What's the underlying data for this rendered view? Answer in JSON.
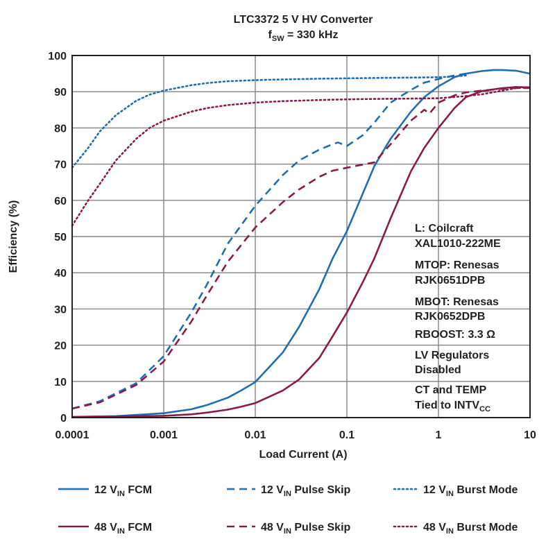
{
  "chart_data": {
    "type": "line",
    "title": "LTC3372 5 V HV Converter",
    "subtitle": {
      "main": "f",
      "sub": "SW",
      "rest": " = 330 kHz"
    },
    "xlabel": "Load Current (A)",
    "ylabel": "Efficiency (%)",
    "x_scale": "log",
    "xlim": [
      0.0001,
      10
    ],
    "ylim": [
      0,
      100
    ],
    "grid": true,
    "x_ticks": [
      "0.0001",
      "0.001",
      "0.01",
      "0.1",
      "1",
      "10"
    ],
    "y_ticks": [
      "0",
      "10",
      "20",
      "30",
      "40",
      "50",
      "60",
      "70",
      "80",
      "90",
      "100"
    ],
    "colors": {
      "12V": "#1f6db3",
      "48V": "#8b1a4a"
    },
    "annotations": [
      [
        {
          "t": "L: Coilcraft"
        }
      ],
      [
        {
          "t": "XAL1010-222ME"
        }
      ],
      [
        {
          "t": "MTOP: Renesas"
        }
      ],
      [
        {
          "t": "RJK0651DPB"
        }
      ],
      [
        {
          "t": "MBOT: Renesas"
        }
      ],
      [
        {
          "t": "RJK0652DPB"
        }
      ],
      [
        {
          "t": "RBOOST: 3.3 Ω"
        }
      ],
      [
        {
          "t": "LV Regulators"
        }
      ],
      [
        {
          "t": "Disabled"
        }
      ],
      [
        {
          "t": "CT and TEMP"
        }
      ],
      [
        {
          "t": "Tied to INTV"
        },
        {
          "t": "CC",
          "sub": true
        }
      ]
    ],
    "legend_placement": "bottom",
    "series": [
      {
        "name": "12 V IN FCM",
        "legend": [
          {
            "t": "12 V"
          },
          {
            "t": "IN",
            "sub": true
          },
          {
            "t": " FCM"
          }
        ],
        "color": "#1f6db3",
        "style": "solid",
        "x": [
          0.0001,
          0.0003,
          0.001,
          0.002,
          0.003,
          0.005,
          0.007,
          0.01,
          0.02,
          0.03,
          0.05,
          0.07,
          0.1,
          0.15,
          0.2,
          0.3,
          0.5,
          0.7,
          1,
          1.5,
          2,
          3,
          4,
          5,
          7,
          10
        ],
        "y": [
          0.2,
          0.4,
          1.2,
          2.3,
          3.5,
          5.5,
          7.5,
          9.8,
          18,
          25,
          35.5,
          44,
          51.5,
          62,
          69.5,
          77,
          84.5,
          88.5,
          91.5,
          94,
          95,
          95.7,
          96,
          96,
          95.8,
          95
        ]
      },
      {
        "name": "12 V IN Pulse Skip",
        "legend": [
          {
            "t": "12 V"
          },
          {
            "t": "IN",
            "sub": true
          },
          {
            "t": " Pulse Skip"
          }
        ],
        "color": "#1f6db3",
        "style": "dashed",
        "x": [
          0.0001,
          0.0002,
          0.0005,
          0.001,
          0.002,
          0.003,
          0.005,
          0.01,
          0.02,
          0.03,
          0.05,
          0.07,
          0.08,
          0.1,
          0.15,
          0.2,
          0.3,
          0.5,
          0.7,
          1,
          1.5,
          2
        ],
        "y": [
          2.5,
          4.5,
          9.5,
          17,
          29,
          37,
          48,
          58.5,
          67,
          71,
          74,
          75.5,
          76,
          75,
          78,
          81.5,
          87,
          90.5,
          92.5,
          93.5,
          94.5,
          95
        ]
      },
      {
        "name": "12 V IN Burst Mode",
        "legend": [
          {
            "t": "12 V"
          },
          {
            "t": "IN",
            "sub": true
          },
          {
            "t": " Burst Mode"
          }
        ],
        "color": "#1f6db3",
        "style": "dotted",
        "x": [
          0.0001,
          0.00015,
          0.0002,
          0.0003,
          0.0005,
          0.0007,
          0.001,
          0.002,
          0.003,
          0.005,
          0.01,
          0.02,
          0.05,
          0.1,
          0.2,
          0.5,
          1,
          1.5,
          2
        ],
        "y": [
          69,
          74.5,
          79,
          83.5,
          87.5,
          89.2,
          90.3,
          91.8,
          92.4,
          92.9,
          93.2,
          93.4,
          93.6,
          93.7,
          93.8,
          93.9,
          94,
          94.2,
          94.5
        ]
      },
      {
        "name": "48 V IN FCM",
        "legend": [
          {
            "t": "48 V"
          },
          {
            "t": "IN",
            "sub": true
          },
          {
            "t": " FCM"
          }
        ],
        "color": "#8b1a4a",
        "style": "solid",
        "x": [
          0.0001,
          0.0003,
          0.001,
          0.002,
          0.003,
          0.005,
          0.007,
          0.01,
          0.02,
          0.03,
          0.05,
          0.07,
          0.1,
          0.15,
          0.2,
          0.3,
          0.5,
          0.7,
          1,
          1.5,
          2,
          3,
          5,
          7,
          10
        ],
        "y": [
          0.2,
          0.3,
          0.5,
          0.9,
          1.4,
          2.2,
          3,
          4,
          7.5,
          10.5,
          16.5,
          22.5,
          29,
          37.5,
          44,
          55,
          68,
          74.5,
          80,
          85.5,
          88.5,
          90.2,
          91,
          91.3,
          91.2
        ]
      },
      {
        "name": "48 V IN Pulse Skip",
        "legend": [
          {
            "t": "48 V"
          },
          {
            "t": "IN",
            "sub": true
          },
          {
            "t": " Pulse Skip"
          }
        ],
        "color": "#8b1a4a",
        "style": "dashed",
        "x": [
          0.0001,
          0.0002,
          0.0005,
          0.001,
          0.002,
          0.003,
          0.005,
          0.01,
          0.02,
          0.03,
          0.05,
          0.07,
          0.1,
          0.2,
          0.3,
          0.5,
          0.7,
          0.8,
          1,
          1.5,
          2,
          3,
          5,
          7,
          10
        ],
        "y": [
          2.5,
          4.2,
          9,
          15.5,
          26.5,
          34,
          43,
          52.5,
          59.5,
          63,
          66.5,
          68.2,
          69,
          70.5,
          75.5,
          82,
          85,
          84,
          87,
          89,
          89.8,
          90.3,
          90.8,
          91,
          91
        ]
      },
      {
        "name": "48 V IN Burst Mode",
        "legend": [
          {
            "t": "48 V"
          },
          {
            "t": "IN",
            "sub": true
          },
          {
            "t": " Burst Mode"
          }
        ],
        "color": "#8b1a4a",
        "style": "dotted",
        "x": [
          0.0001,
          0.00015,
          0.0002,
          0.0003,
          0.0005,
          0.0007,
          0.001,
          0.002,
          0.003,
          0.005,
          0.01,
          0.02,
          0.05,
          0.1,
          0.2,
          0.5,
          1,
          2,
          3,
          5,
          7,
          10
        ],
        "y": [
          53,
          60,
          64.5,
          71,
          77,
          80,
          82,
          84.5,
          85.5,
          86.3,
          87,
          87.4,
          87.7,
          87.9,
          88,
          88.1,
          88.2,
          88.8,
          89.3,
          90.3,
          91,
          91.2
        ]
      }
    ]
  }
}
